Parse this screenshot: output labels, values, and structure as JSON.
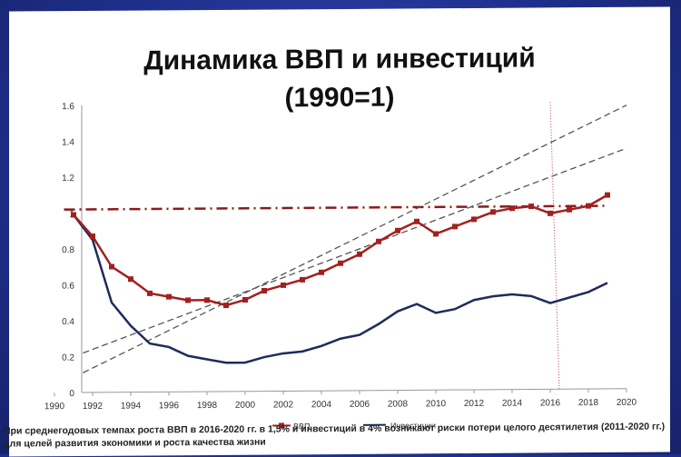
{
  "title_line1": "Динамика ВВП и инвестиций",
  "title_line2": "(1990=1)",
  "caption": "При среднегодовых темпах роста ВВП в 2016-2020 гг. в 1,5% и инвестиций в 4% возникают риски потери целого десятилетия (2011-2020 гг.) для целей развития экономики и роста качества жизни",
  "colors": {
    "gdp": "#a32020",
    "invest": "#1f2b5a",
    "trend": "#555555",
    "ref": "#8b1a1a"
  },
  "chart_data": {
    "type": "line",
    "x_ticks": [
      "1990",
      "1992",
      "1994",
      "1996",
      "1998",
      "2000",
      "2002",
      "2004",
      "2006",
      "2008",
      "2010",
      "2012",
      "2014",
      "2016",
      "2018",
      "2020"
    ],
    "y_ticks": [
      "0",
      "0.2",
      "0.4",
      "0.6",
      "0.8",
      "1",
      "1.2",
      "1.4",
      "1.6"
    ],
    "xlim": [
      1990,
      2020
    ],
    "ylim": [
      0,
      1.6
    ],
    "series": [
      {
        "name": "ВВП",
        "x": [
          1991,
          1992,
          1993,
          1994,
          1995,
          1996,
          1997,
          1998,
          1999,
          2000,
          2001,
          2002,
          2003,
          2004,
          2005,
          2006,
          2007,
          2008,
          2009,
          2010,
          2011,
          2012,
          2013,
          2014,
          2015,
          2016,
          2017,
          2018,
          2019
        ],
        "values": [
          0.99,
          0.87,
          0.7,
          0.63,
          0.55,
          0.53,
          0.51,
          0.51,
          0.48,
          0.51,
          0.56,
          0.59,
          0.62,
          0.66,
          0.71,
          0.76,
          0.83,
          0.89,
          0.94,
          0.87,
          0.91,
          0.95,
          0.99,
          1.01,
          1.02,
          0.98,
          1.0,
          1.02,
          1.08
        ]
      },
      {
        "name": "Инвестиции",
        "x": [
          1991,
          1992,
          1993,
          1994,
          1995,
          1996,
          1997,
          1998,
          1999,
          2000,
          2001,
          2002,
          2003,
          2004,
          2005,
          2006,
          2007,
          2008,
          2009,
          2010,
          2011,
          2012,
          2013,
          2014,
          2015,
          2016,
          2017,
          2018,
          2019
        ],
        "values": [
          0.99,
          0.85,
          0.5,
          0.37,
          0.27,
          0.25,
          0.2,
          0.18,
          0.16,
          0.16,
          0.19,
          0.21,
          0.22,
          0.25,
          0.29,
          0.31,
          0.37,
          0.44,
          0.48,
          0.43,
          0.45,
          0.5,
          0.52,
          0.53,
          0.52,
          0.48,
          0.51,
          0.54,
          0.59
        ]
      }
    ],
    "reference_line": {
      "y": 1.02,
      "x": [
        1990.5,
        2019
      ]
    },
    "trend_lines": [
      {
        "x": [
          1991.5,
          2020
        ],
        "y": [
          0.11,
          1.58
        ]
      },
      {
        "x": [
          1991.5,
          2020
        ],
        "y": [
          0.22,
          1.34
        ]
      }
    ],
    "vertical_marker": {
      "x": 2016,
      "y_top": 1.6
    },
    "legend_position": "bottom",
    "grid": false
  }
}
